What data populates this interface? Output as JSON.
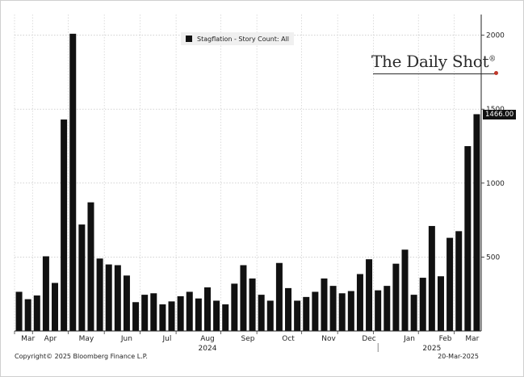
{
  "chart_data": {
    "type": "bar",
    "legend": "Stagflation - Story Count: All",
    "x_month_labels": [
      "Mar",
      "Apr",
      "May",
      "Jun",
      "Jul",
      "Aug",
      "Sep",
      "Oct",
      "Nov",
      "Dec",
      "Jan",
      "Feb",
      "Mar"
    ],
    "year_labels": [
      "2024",
      "2025"
    ],
    "y_ticks": [
      500,
      1000,
      1500,
      2000
    ],
    "ylim": [
      0,
      2140
    ],
    "last_value_label": "1466.00",
    "values": [
      265,
      215,
      240,
      505,
      325,
      1430,
      2010,
      720,
      870,
      490,
      450,
      445,
      375,
      195,
      245,
      255,
      180,
      200,
      235,
      265,
      220,
      295,
      205,
      180,
      320,
      445,
      355,
      245,
      205,
      460,
      290,
      205,
      230,
      265,
      355,
      305,
      255,
      270,
      385,
      485,
      275,
      305,
      455,
      550,
      245,
      360,
      710,
      370,
      630,
      675,
      1250,
      1466
    ],
    "color": "#111111"
  },
  "legend_text": "Stagflation - Story Count: All",
  "watermark": {
    "text": "The Daily Shot",
    "mark": "®"
  },
  "footer": {
    "copyright": "Copyright© 2025 Bloomberg Finance L.P.",
    "date": "20-Mar-2025"
  }
}
